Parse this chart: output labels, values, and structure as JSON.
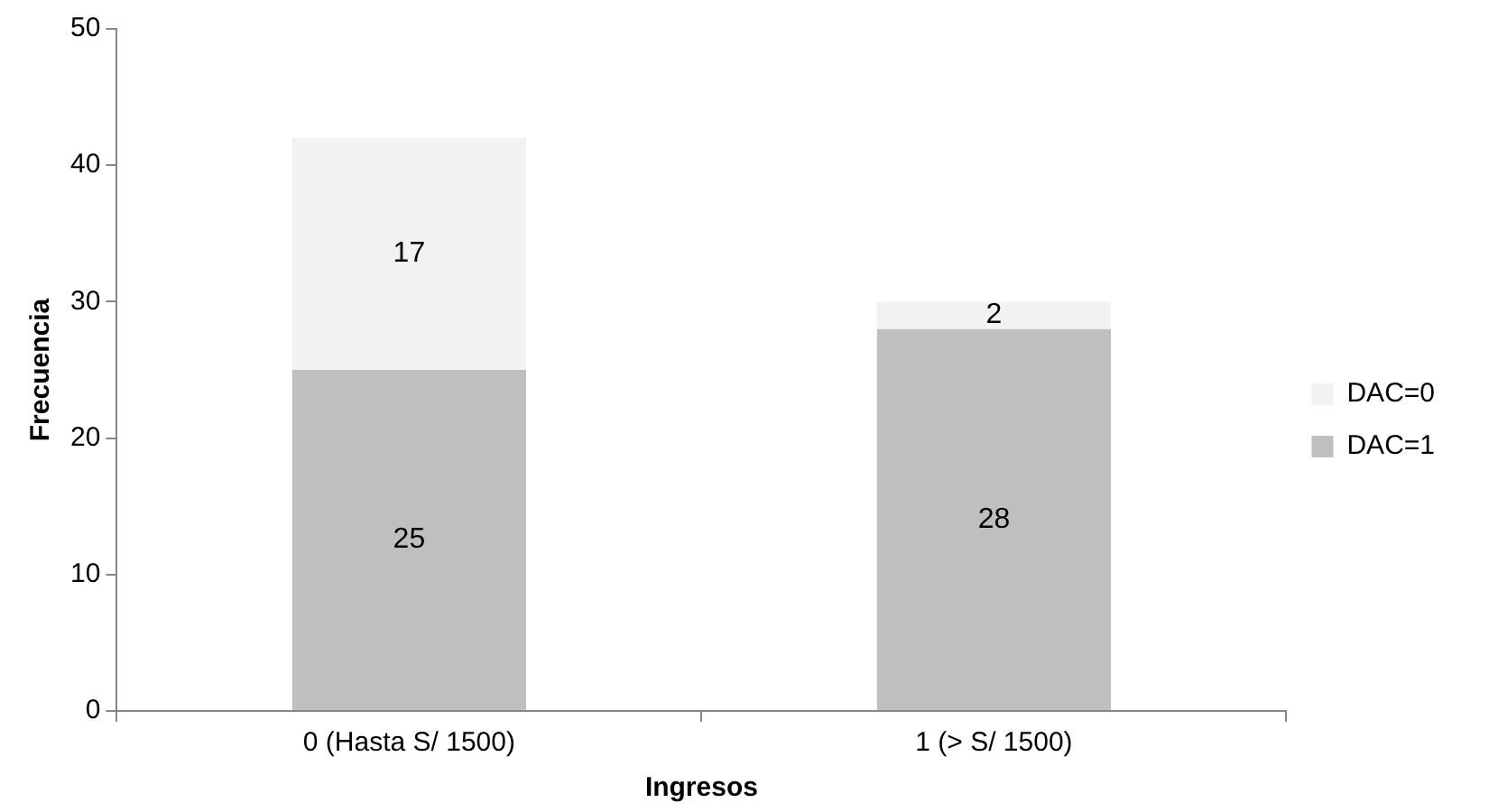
{
  "chart_data": {
    "type": "bar",
    "stacked": true,
    "xlabel": "Ingresos",
    "ylabel": "Frecuencia",
    "categories": [
      "0 (Hasta S/ 1500)",
      "1 (> S/ 1500)"
    ],
    "series": [
      {
        "name": "DAC=1",
        "color": "#bfbfbf",
        "values": [
          25,
          28
        ]
      },
      {
        "name": "DAC=0",
        "color": "#f2f2f2",
        "values": [
          17,
          2
        ]
      }
    ],
    "ylim": [
      0,
      50
    ],
    "yticks": [
      0,
      10,
      20,
      30,
      40,
      50
    ],
    "grid": false,
    "legend": "right",
    "data_labels": true
  }
}
